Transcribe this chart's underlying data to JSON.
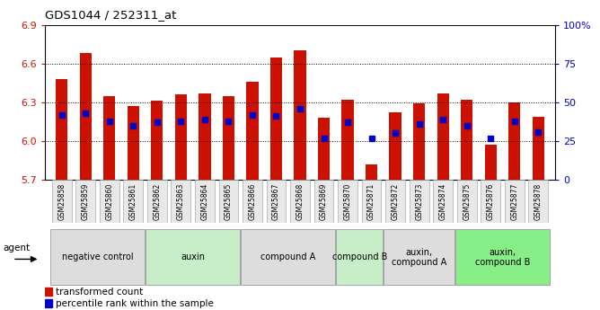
{
  "title": "GDS1044 / 252311_at",
  "categories": [
    "GSM25858",
    "GSM25859",
    "GSM25860",
    "GSM25861",
    "GSM25862",
    "GSM25863",
    "GSM25864",
    "GSM25865",
    "GSM25866",
    "GSM25867",
    "GSM25868",
    "GSM25869",
    "GSM25870",
    "GSM25871",
    "GSM25872",
    "GSM25873",
    "GSM25874",
    "GSM25875",
    "GSM25876",
    "GSM25877",
    "GSM25878"
  ],
  "bar_values": [
    6.48,
    6.68,
    6.35,
    6.27,
    6.31,
    6.36,
    6.37,
    6.35,
    6.46,
    6.65,
    6.7,
    6.18,
    6.32,
    5.82,
    6.22,
    6.29,
    6.37,
    6.32,
    5.97,
    6.3,
    6.19
  ],
  "percentile_ranks": [
    42,
    43,
    38,
    35,
    37,
    38,
    39,
    38,
    42,
    41,
    46,
    27,
    37,
    27,
    30,
    36,
    39,
    35,
    27,
    38,
    31
  ],
  "bar_color": "#cc1100",
  "dot_color": "#0000cc",
  "ymin": 5.7,
  "ymax": 6.9,
  "yticks": [
    5.7,
    6.0,
    6.3,
    6.6,
    6.9
  ],
  "y2min": 0,
  "y2max": 100,
  "y2ticks": [
    0,
    25,
    50,
    75,
    100
  ],
  "y2ticklabels": [
    "0",
    "25",
    "50",
    "75",
    "100%"
  ],
  "groups": [
    {
      "label": "negative control",
      "start": 0,
      "end": 3,
      "color": "#dddddd"
    },
    {
      "label": "auxin",
      "start": 4,
      "end": 7,
      "color": "#c8eec8"
    },
    {
      "label": "compound A",
      "start": 8,
      "end": 11,
      "color": "#dddddd"
    },
    {
      "label": "compound B",
      "start": 12,
      "end": 13,
      "color": "#c8eec8"
    },
    {
      "label": "auxin,\ncompound A",
      "start": 14,
      "end": 16,
      "color": "#dddddd"
    },
    {
      "label": "auxin,\ncompound B",
      "start": 17,
      "end": 20,
      "color": "#88ee88"
    }
  ],
  "legend_red": "transformed count",
  "legend_blue": "percentile rank within the sample",
  "agent_label": "agent",
  "bar_width": 0.5,
  "dot_size": 18
}
